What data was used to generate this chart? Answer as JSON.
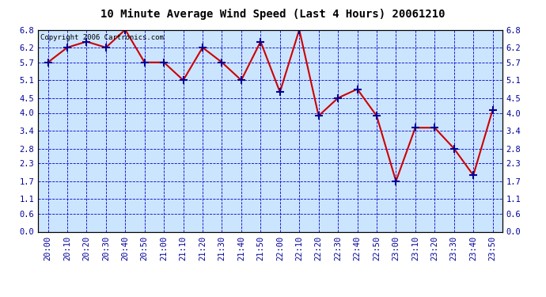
{
  "title": "10 Minute Average Wind Speed (Last 4 Hours) 20061210",
  "copyright": "Copyright 2006 Cartronics.com",
  "x_labels": [
    "20:00",
    "20:10",
    "20:20",
    "20:30",
    "20:40",
    "20:50",
    "21:00",
    "21:10",
    "21:20",
    "21:30",
    "21:40",
    "21:50",
    "22:00",
    "22:10",
    "22:20",
    "22:30",
    "22:40",
    "22:50",
    "23:00",
    "23:10",
    "23:20",
    "23:30",
    "23:40",
    "23:50"
  ],
  "y_values": [
    5.7,
    6.2,
    6.4,
    6.2,
    6.8,
    5.7,
    5.7,
    5.1,
    6.2,
    5.7,
    5.1,
    6.4,
    4.7,
    6.8,
    3.9,
    4.5,
    4.8,
    3.9,
    1.7,
    3.5,
    3.5,
    2.8,
    1.9,
    4.1
  ],
  "y_ticks": [
    0.0,
    0.6,
    1.1,
    1.7,
    2.3,
    2.8,
    3.4,
    4.0,
    4.5,
    5.1,
    5.7,
    6.2,
    6.8
  ],
  "y_min": 0.0,
  "y_max": 6.8,
  "line_color": "#cc0000",
  "marker_color": "#000099",
  "grid_color": "#0000cc",
  "bg_color": "#cce5ff",
  "border_color": "#000000",
  "title_color": "#000000",
  "copyright_color": "#000000",
  "title_fontsize": 10,
  "copyright_fontsize": 6.5,
  "tick_label_fontsize": 7.5,
  "tick_label_color": "#000099"
}
